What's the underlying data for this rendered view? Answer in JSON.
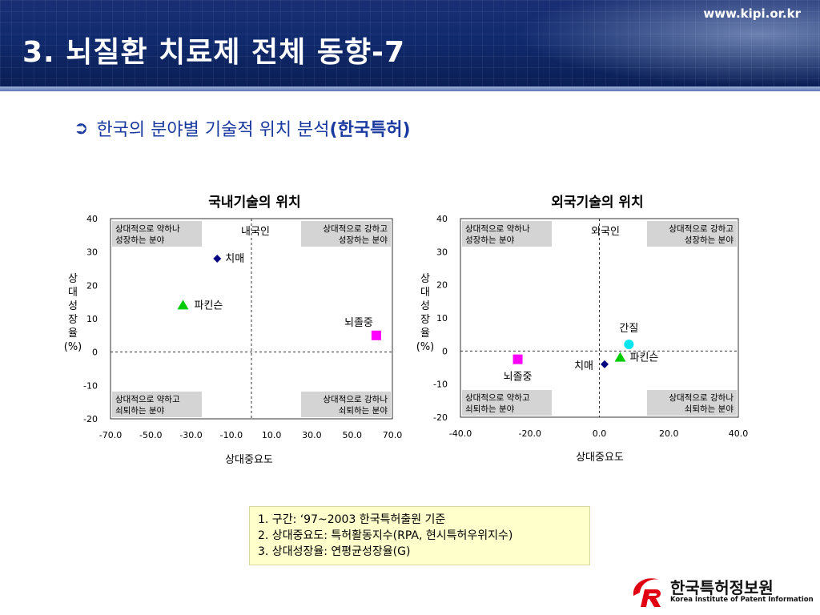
{
  "header": {
    "site": "www.kipi.or.kr",
    "title": "3. 뇌질환 치료제 전체 동향-7"
  },
  "subtitle": {
    "arrow_icon": "arrow-right-circle-icon",
    "text": "한국의 분야별 기술적 위치 분석",
    "bold": "(한국특허)"
  },
  "colors": {
    "navy": "#1a2f73",
    "diamond": "#000080",
    "green": "#00cc00",
    "magenta": "#ff00ff",
    "cyan": "#00e5ee",
    "quadrant_box": "#d4d4d4"
  },
  "quadrant_labels": {
    "tl": [
      "상대적으로 약하나",
      "성장하는 분야"
    ],
    "tr": [
      "상대적으로 강하고",
      "성장하는 분야"
    ],
    "bl": [
      "상대적으로 약하고",
      "쇠퇴하는 분야"
    ],
    "br": [
      "상대적으로 강하나",
      "쇠퇴하는 분야"
    ]
  },
  "chart_data": [
    {
      "type": "scatter",
      "title": "국내기술의 위치",
      "corner_label": "내국인",
      "xlabel": "상대중요도",
      "ylabel": [
        "상",
        "대",
        "성",
        "장",
        "율",
        "(%)"
      ],
      "xlim": [
        -70,
        70
      ],
      "ylim": [
        -20,
        40
      ],
      "xticks": [
        "-70.0",
        "-50.0",
        "-30.0",
        "-10.0",
        "10.0",
        "30.0",
        "50.0",
        "70.0"
      ],
      "yticks": [
        "40",
        "30",
        "20",
        "10",
        "0",
        "-10",
        "-20"
      ],
      "points": [
        {
          "label": "치매",
          "x": -17,
          "y": 28,
          "marker": "diamond",
          "color": "#000080"
        },
        {
          "label": "파킨슨",
          "x": -34,
          "y": 14,
          "marker": "triangle",
          "color": "#00cc00"
        },
        {
          "label": "뇌졸중",
          "x": 62,
          "y": 5,
          "marker": "square",
          "color": "#ff00ff"
        }
      ]
    },
    {
      "type": "scatter",
      "title": "외국기술의 위치",
      "corner_label": "외국인",
      "xlabel": "상대중요도",
      "ylabel": [
        "상",
        "대",
        "성",
        "장",
        "율",
        "(%)"
      ],
      "xlim": [
        -40,
        40
      ],
      "ylim": [
        -20,
        40
      ],
      "xticks": [
        "-40.0",
        "-20.0",
        "0.0",
        "20.0",
        "40.0"
      ],
      "yticks": [
        "40",
        "30",
        "20",
        "10",
        "0",
        "-10",
        "-20"
      ],
      "points": [
        {
          "label": "간질",
          "x": 8.5,
          "y": 2,
          "marker": "circle",
          "color": "#00e5ee"
        },
        {
          "label": "파킨슨",
          "x": 6,
          "y": -2,
          "marker": "triangle",
          "color": "#00cc00"
        },
        {
          "label": "치매",
          "x": 1.5,
          "y": -4,
          "marker": "diamond",
          "color": "#000080"
        },
        {
          "label": "뇌졸중",
          "x": -23.5,
          "y": -2.5,
          "marker": "square",
          "color": "#ff00ff"
        }
      ]
    }
  ],
  "notes": [
    "1. 구간: ‘97~2003 한국특허출원 기준",
    "2. 상대중요도: 특허활동지수(RPA, 현시특허우위지수)",
    "3. 상대성장율: 연평균성장율(G)"
  ],
  "logo": {
    "icon": "kipi-logo-icon",
    "name_ko": "한국특허정보원",
    "name_en": "Korea Institute of Patent Information"
  }
}
